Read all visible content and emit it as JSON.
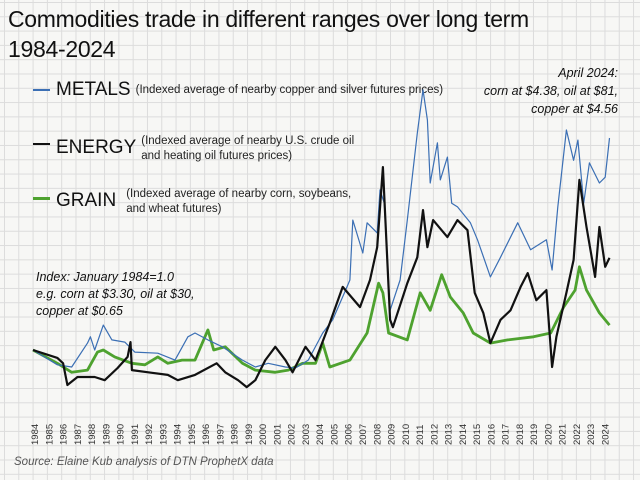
{
  "chart_data": {
    "type": "line",
    "title": "Commodities trade in different ranges over long term",
    "subtitle": "1984-2024",
    "xlabel": "",
    "ylabel": "",
    "xlim": [
      1984,
      2024.3
    ],
    "ylim": [
      0,
      6
    ],
    "grid": true,
    "legend_placement": "top-left",
    "x_tick_labels": [
      "1984",
      "1985",
      "1986",
      "1987",
      "1988",
      "1989",
      "1990",
      "1991",
      "1992",
      "1993",
      "1994",
      "1995",
      "1996",
      "1997",
      "1998",
      "1999",
      "2000",
      "2001",
      "2002",
      "2003",
      "2004",
      "2005",
      "2006",
      "2007",
      "2008",
      "2009",
      "2010",
      "2011",
      "2012",
      "2013",
      "2014",
      "2015",
      "2016",
      "2017",
      "2018",
      "2019",
      "2020",
      "2021",
      "2022",
      "2023",
      "2024"
    ],
    "series": [
      {
        "name": "METALS",
        "description": "(Indexed average of nearby copper and silver futures prices)",
        "color": "#3b6fb4",
        "points": [
          [
            1984.0,
            1.0
          ],
          [
            1985.7,
            0.72
          ],
          [
            1986.7,
            0.68
          ],
          [
            1987.8,
            1.13
          ],
          [
            1988.0,
            1.25
          ],
          [
            1988.3,
            1.0
          ],
          [
            1988.9,
            1.47
          ],
          [
            1989.5,
            1.19
          ],
          [
            1990.4,
            1.15
          ],
          [
            1991.1,
            0.96
          ],
          [
            1992.7,
            0.94
          ],
          [
            1993.9,
            0.81
          ],
          [
            1994.8,
            1.25
          ],
          [
            1995.3,
            1.32
          ],
          [
            1996.2,
            1.19
          ],
          [
            1997.2,
            1.06
          ],
          [
            1998.6,
            0.81
          ],
          [
            1999.5,
            0.68
          ],
          [
            2000.4,
            0.75
          ],
          [
            2001.6,
            0.68
          ],
          [
            2002.3,
            0.66
          ],
          [
            2003.2,
            0.81
          ],
          [
            2004.2,
            1.32
          ],
          [
            2004.9,
            1.57
          ],
          [
            2005.8,
            2.13
          ],
          [
            2006.1,
            2.32
          ],
          [
            2006.3,
            3.45
          ],
          [
            2007.0,
            2.83
          ],
          [
            2007.3,
            3.4
          ],
          [
            2008.0,
            3.21
          ],
          [
            2008.2,
            4.02
          ],
          [
            2008.5,
            3.77
          ],
          [
            2008.9,
            1.75
          ],
          [
            2009.6,
            2.32
          ],
          [
            2010.1,
            3.45
          ],
          [
            2010.8,
            5.09
          ],
          [
            2011.2,
            5.91
          ],
          [
            2011.5,
            5.34
          ],
          [
            2011.7,
            4.15
          ],
          [
            2012.2,
            4.91
          ],
          [
            2012.4,
            4.21
          ],
          [
            2012.9,
            4.64
          ],
          [
            2013.2,
            3.77
          ],
          [
            2013.6,
            3.7
          ],
          [
            2014.5,
            3.4
          ],
          [
            2015.0,
            3.08
          ],
          [
            2015.9,
            2.38
          ],
          [
            2016.6,
            2.75
          ],
          [
            2017.8,
            3.4
          ],
          [
            2018.7,
            2.89
          ],
          [
            2019.8,
            3.08
          ],
          [
            2020.2,
            2.51
          ],
          [
            2020.6,
            3.7
          ],
          [
            2021.2,
            5.15
          ],
          [
            2021.7,
            4.58
          ],
          [
            2022.0,
            4.96
          ],
          [
            2022.4,
            3.77
          ],
          [
            2022.8,
            4.53
          ],
          [
            2023.5,
            4.15
          ],
          [
            2023.9,
            4.26
          ],
          [
            2024.2,
            5.0
          ]
        ]
      },
      {
        "name": "ENERGY",
        "description": "(Indexed average of nearby U.S. crude oil and heating oil futures prices)",
        "color": "#111111",
        "points": [
          [
            1984.0,
            1.0
          ],
          [
            1985.7,
            0.85
          ],
          [
            1986.1,
            0.75
          ],
          [
            1986.4,
            0.34
          ],
          [
            1987.1,
            0.49
          ],
          [
            1988.3,
            0.49
          ],
          [
            1989.0,
            0.43
          ],
          [
            1989.9,
            0.66
          ],
          [
            1990.6,
            0.87
          ],
          [
            1990.8,
            1.15
          ],
          [
            1990.9,
            0.62
          ],
          [
            1992.3,
            0.57
          ],
          [
            1993.4,
            0.53
          ],
          [
            1994.1,
            0.43
          ],
          [
            1995.3,
            0.53
          ],
          [
            1996.8,
            0.75
          ],
          [
            1997.4,
            0.58
          ],
          [
            1998.3,
            0.43
          ],
          [
            1998.9,
            0.3
          ],
          [
            1999.5,
            0.43
          ],
          [
            2000.2,
            0.81
          ],
          [
            2000.9,
            1.06
          ],
          [
            2001.6,
            0.81
          ],
          [
            2002.1,
            0.58
          ],
          [
            2003.0,
            1.06
          ],
          [
            2003.7,
            0.81
          ],
          [
            2004.7,
            1.51
          ],
          [
            2005.6,
            2.19
          ],
          [
            2006.8,
            1.81
          ],
          [
            2007.5,
            2.32
          ],
          [
            2008.0,
            2.94
          ],
          [
            2008.4,
            4.45
          ],
          [
            2008.9,
            1.57
          ],
          [
            2009.1,
            1.43
          ],
          [
            2010.1,
            2.26
          ],
          [
            2010.8,
            2.75
          ],
          [
            2011.2,
            3.64
          ],
          [
            2011.5,
            2.94
          ],
          [
            2011.9,
            3.45
          ],
          [
            2012.9,
            3.13
          ],
          [
            2013.6,
            3.45
          ],
          [
            2014.3,
            3.26
          ],
          [
            2014.8,
            2.08
          ],
          [
            2015.4,
            1.7
          ],
          [
            2015.9,
            1.13
          ],
          [
            2016.6,
            1.57
          ],
          [
            2017.3,
            1.75
          ],
          [
            2018.0,
            2.19
          ],
          [
            2018.5,
            2.45
          ],
          [
            2019.1,
            1.94
          ],
          [
            2019.8,
            2.13
          ],
          [
            2020.2,
            0.68
          ],
          [
            2020.5,
            1.25
          ],
          [
            2021.2,
            2.08
          ],
          [
            2021.7,
            2.7
          ],
          [
            2022.1,
            4.21
          ],
          [
            2022.6,
            3.32
          ],
          [
            2023.2,
            2.38
          ],
          [
            2023.5,
            3.32
          ],
          [
            2023.9,
            2.57
          ],
          [
            2024.2,
            2.74
          ]
        ]
      },
      {
        "name": "GRAIN",
        "description": "(Indexed average of nearby corn, soybeans, and wheat futures)",
        "color": "#4ea22f",
        "points": [
          [
            1984.0,
            1.0
          ],
          [
            1985.7,
            0.75
          ],
          [
            1986.7,
            0.58
          ],
          [
            1987.8,
            0.62
          ],
          [
            1988.5,
            0.96
          ],
          [
            1988.9,
            1.0
          ],
          [
            1989.7,
            0.87
          ],
          [
            1990.9,
            0.75
          ],
          [
            1991.8,
            0.72
          ],
          [
            1992.7,
            0.87
          ],
          [
            1993.4,
            0.75
          ],
          [
            1994.4,
            0.81
          ],
          [
            1995.3,
            0.81
          ],
          [
            1996.2,
            1.38
          ],
          [
            1996.6,
            1.0
          ],
          [
            1997.4,
            1.06
          ],
          [
            1998.6,
            0.75
          ],
          [
            1999.5,
            0.62
          ],
          [
            2000.9,
            0.58
          ],
          [
            2001.8,
            0.62
          ],
          [
            2002.8,
            0.75
          ],
          [
            2003.7,
            0.75
          ],
          [
            2004.2,
            1.13
          ],
          [
            2004.7,
            0.68
          ],
          [
            2006.1,
            0.81
          ],
          [
            2007.3,
            1.32
          ],
          [
            2008.1,
            2.26
          ],
          [
            2008.4,
            2.08
          ],
          [
            2008.8,
            1.32
          ],
          [
            2010.1,
            1.19
          ],
          [
            2011.0,
            2.08
          ],
          [
            2011.7,
            1.75
          ],
          [
            2012.5,
            2.42
          ],
          [
            2013.1,
            2.0
          ],
          [
            2014.0,
            1.7
          ],
          [
            2014.7,
            1.32
          ],
          [
            2015.9,
            1.13
          ],
          [
            2017.1,
            1.19
          ],
          [
            2018.9,
            1.25
          ],
          [
            2020.1,
            1.32
          ],
          [
            2021.0,
            1.81
          ],
          [
            2021.8,
            2.13
          ],
          [
            2022.1,
            2.57
          ],
          [
            2022.6,
            2.13
          ],
          [
            2023.5,
            1.7
          ],
          [
            2024.2,
            1.47
          ]
        ]
      }
    ],
    "annotations": {
      "latest": [
        "April 2024:",
        "corn at $4.38, oil at $81,",
        "copper at $4.56"
      ],
      "index": [
        "Index: January 1984=1.0",
        "e.g. corn at $3.30, oil at $30,",
        "copper at $0.65"
      ]
    },
    "source": "Source: Elaine Kub analysis of DTN ProphetX data"
  },
  "legend": {
    "metals": {
      "name": "METALS",
      "desc": [
        "(Indexed average of nearby copper and silver futures prices)"
      ]
    },
    "energy": {
      "name": "ENERGY",
      "desc": [
        "(Indexed average of nearby U.S. crude oil",
        "and heating oil futures prices)"
      ]
    },
    "grain": {
      "name": "GRAIN",
      "desc": [
        "(Indexed average of nearby corn, soybeans,",
        "and wheat futures)"
      ]
    }
  }
}
